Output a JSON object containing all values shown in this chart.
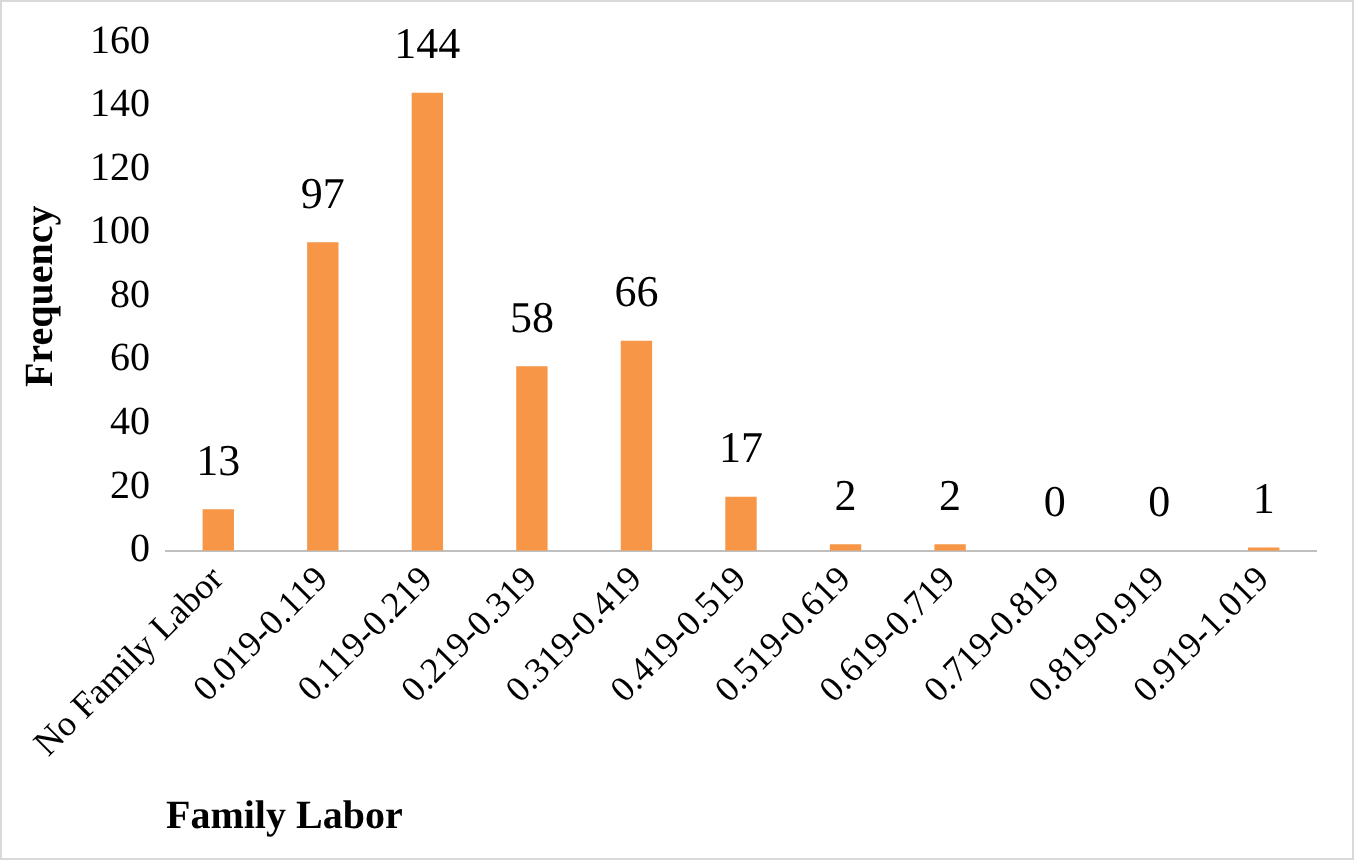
{
  "chart_data": {
    "type": "bar",
    "xlabel": "Family Labor",
    "ylabel": "Frequency",
    "categories": [
      "No Family Labor",
      "0.019-0.119",
      "0.119-0.219",
      "0.219-0.319",
      "0.319-0.419",
      "0.419-0.519",
      "0.519-0.619",
      "0.619-0.719",
      "0.719-0.819",
      "0.819-0.919",
      "0.919-1.019"
    ],
    "values": [
      13,
      97,
      144,
      58,
      66,
      17,
      2,
      2,
      0,
      0,
      1
    ],
    "color": "#f79646",
    "ylim": [
      0,
      160
    ],
    "yticks": [
      0,
      20,
      40,
      60,
      80,
      100,
      120,
      140,
      160
    ],
    "grid": false,
    "legend": false,
    "data_labels": true
  }
}
